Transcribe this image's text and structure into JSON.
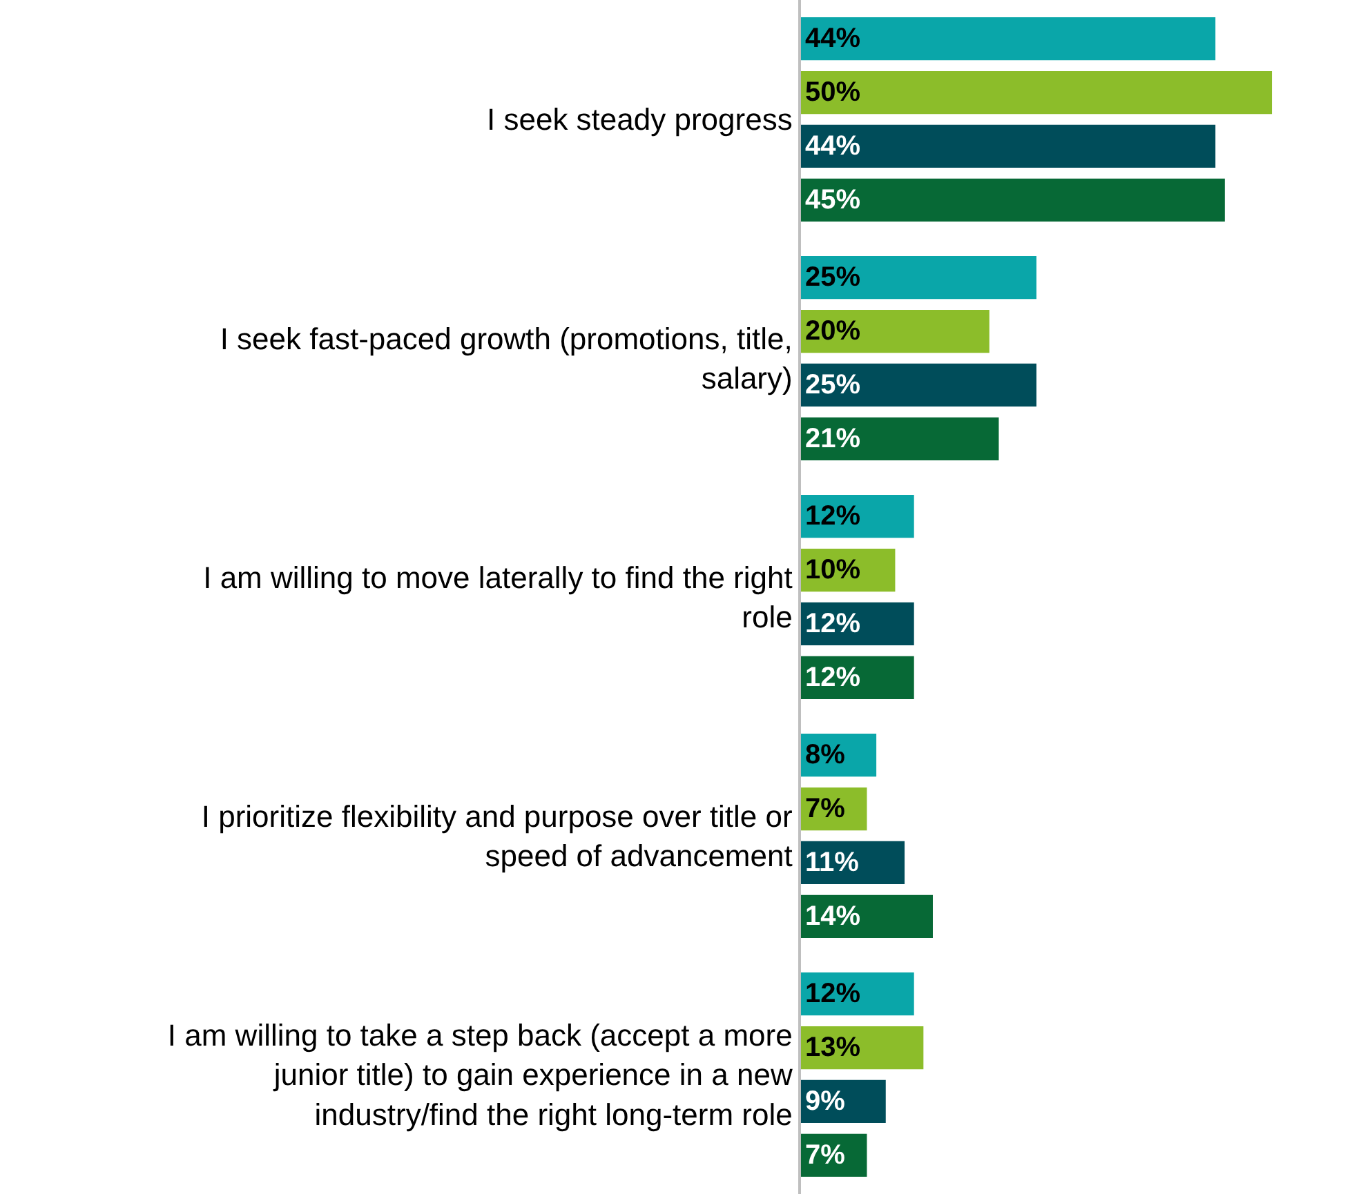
{
  "chart_data": {
    "type": "bar",
    "orientation": "horizontal",
    "categories": [
      "I seek steady progress",
      "I seek fast-paced growth (promotions, title, salary)",
      "I am willing to move laterally to find the right role",
      "I prioritize flexibility and purpose over title or speed of advancement",
      "I am willing to take a step back (accept a more junior title) to gain experience in a new industry/find the right long-term role"
    ],
    "series": [
      {
        "color": "#0aa6a9",
        "values": [
          44,
          25,
          12,
          8,
          12
        ],
        "value_labels": [
          "44%",
          "25%",
          "12%",
          "8%",
          "12%"
        ]
      },
      {
        "color": "#8cbd2a",
        "values": [
          50,
          20,
          10,
          7,
          13
        ],
        "value_labels": [
          "50%",
          "20%",
          "10%",
          "7%",
          "13%"
        ]
      },
      {
        "color": "#004d5a",
        "values": [
          44,
          25,
          12,
          11,
          9
        ],
        "value_labels": [
          "44%",
          "25%",
          "12%",
          "11%",
          "9%"
        ]
      },
      {
        "color": "#076936",
        "values": [
          45,
          21,
          12,
          14,
          7
        ],
        "value_labels": [
          "45%",
          "21%",
          "12%",
          "14%",
          "7%"
        ]
      }
    ],
    "legend": false
  }
}
